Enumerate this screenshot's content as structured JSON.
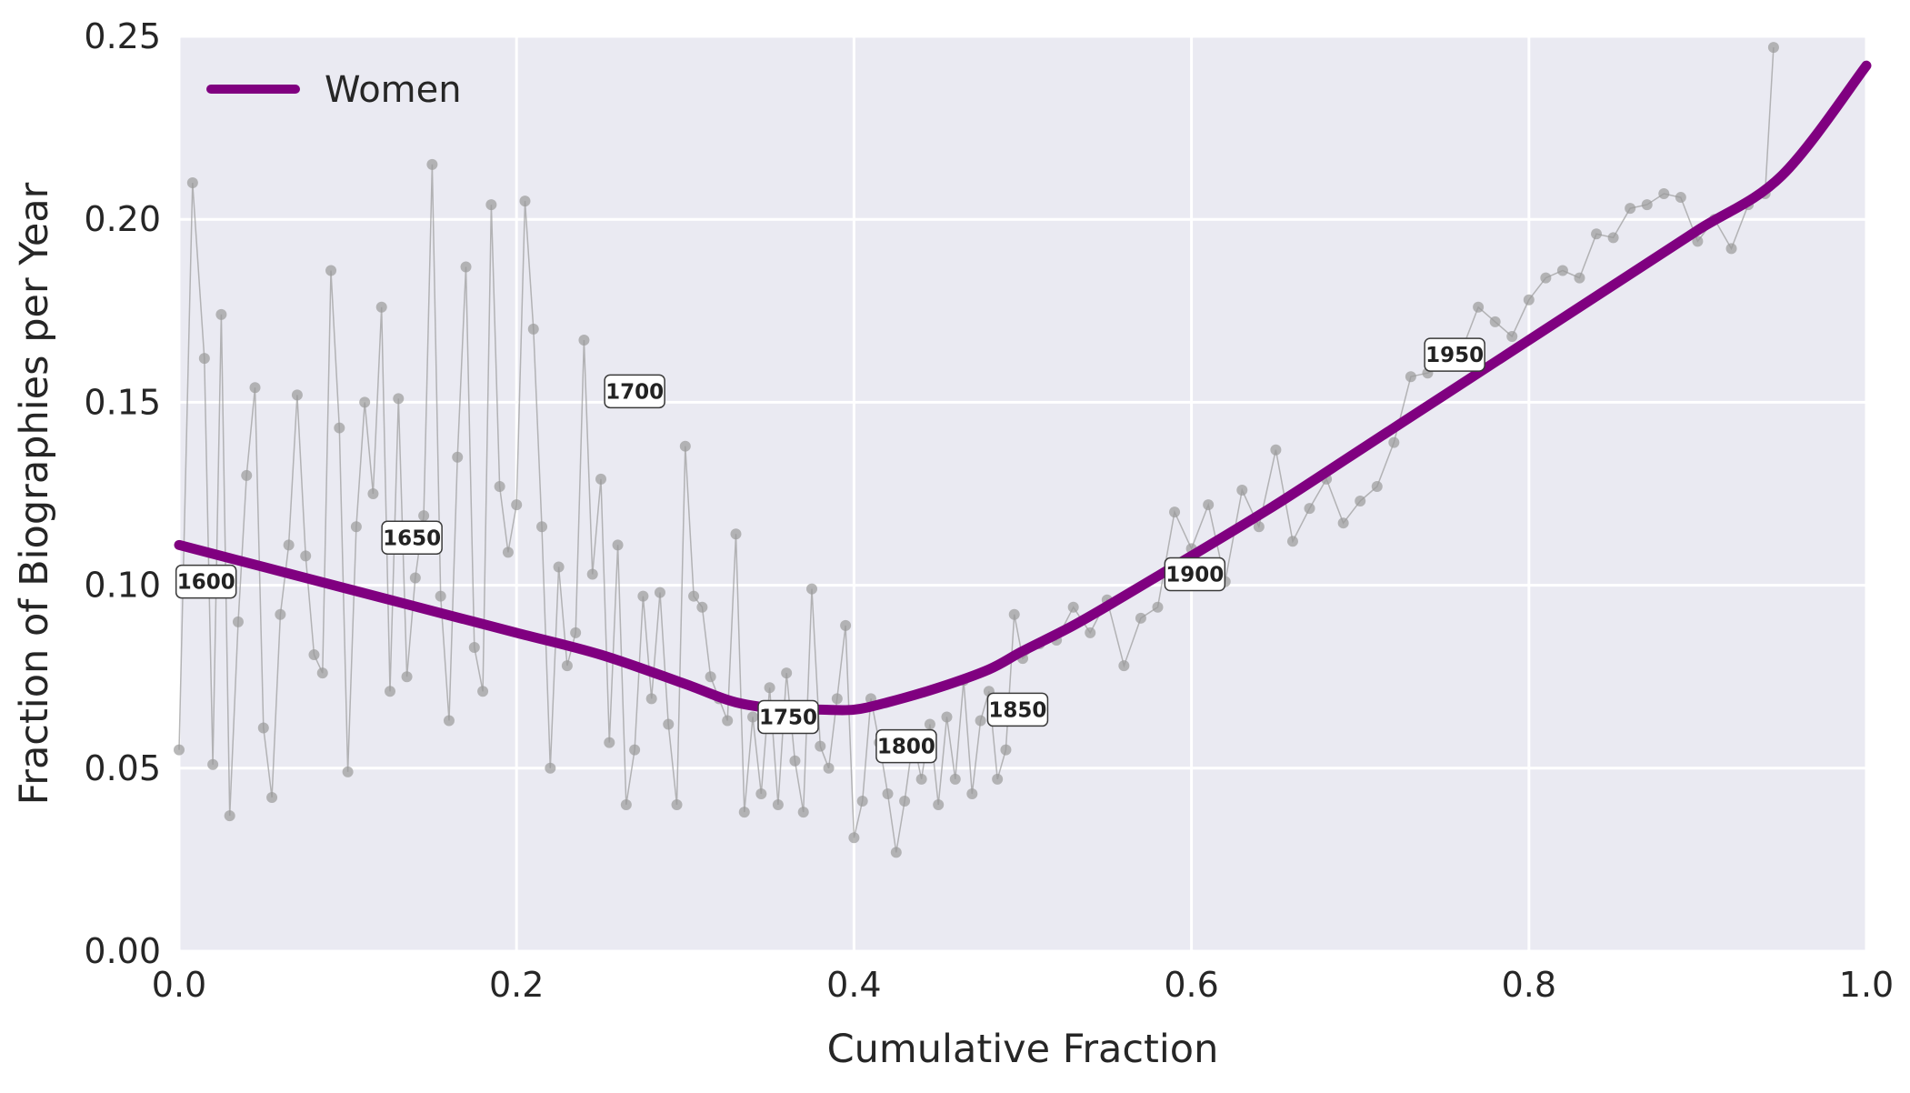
{
  "chart_data": {
    "type": "line",
    "xlabel": "Cumulative Fraction",
    "ylabel": "Fraction of Biographies per Year",
    "xlim": [
      0.0,
      1.0
    ],
    "ylim": [
      0.0,
      0.25
    ],
    "x_ticks": [
      "0.0",
      "0.2",
      "0.4",
      "0.6",
      "0.8",
      "1.0"
    ],
    "y_ticks": [
      "0.00",
      "0.05",
      "0.10",
      "0.15",
      "0.20",
      "0.25"
    ],
    "x_tick_values": [
      0.0,
      0.2,
      0.4,
      0.6,
      0.8,
      1.0
    ],
    "y_tick_values": [
      0.0,
      0.05,
      0.1,
      0.15,
      0.2,
      0.25
    ],
    "grid": true,
    "legend_position": "top-left",
    "colors": {
      "background": "#eaeaf2",
      "grid": "#ffffff",
      "smooth": "#800080",
      "raw": "#9a9a9a"
    },
    "series": [
      {
        "name": "Women",
        "style": "smoothed",
        "x": [
          0.0,
          0.05,
          0.1,
          0.15,
          0.2,
          0.25,
          0.3,
          0.33,
          0.36,
          0.38,
          0.4,
          0.42,
          0.45,
          0.48,
          0.5,
          0.53,
          0.56,
          0.6,
          0.65,
          0.7,
          0.75,
          0.8,
          0.85,
          0.9,
          0.95,
          1.0
        ],
        "y": [
          0.111,
          0.105,
          0.099,
          0.093,
          0.087,
          0.081,
          0.073,
          0.068,
          0.066,
          0.066,
          0.066,
          0.068,
          0.072,
          0.077,
          0.082,
          0.089,
          0.097,
          0.108,
          0.122,
          0.137,
          0.152,
          0.167,
          0.182,
          0.197,
          0.212,
          0.242
        ]
      },
      {
        "style": "raw",
        "x": [
          0.0,
          0.008,
          0.015,
          0.02,
          0.025,
          0.03,
          0.035,
          0.04,
          0.045,
          0.05,
          0.055,
          0.06,
          0.065,
          0.07,
          0.075,
          0.08,
          0.085,
          0.09,
          0.095,
          0.1,
          0.105,
          0.11,
          0.115,
          0.12,
          0.125,
          0.13,
          0.135,
          0.14,
          0.145,
          0.15,
          0.155,
          0.16,
          0.165,
          0.17,
          0.175,
          0.18,
          0.185,
          0.19,
          0.195,
          0.2,
          0.205,
          0.21,
          0.215,
          0.22,
          0.225,
          0.23,
          0.235,
          0.24,
          0.245,
          0.25,
          0.255,
          0.26,
          0.265,
          0.27,
          0.275,
          0.28,
          0.285,
          0.29,
          0.295,
          0.3,
          0.305,
          0.31,
          0.315,
          0.32,
          0.325,
          0.33,
          0.335,
          0.34,
          0.345,
          0.35,
          0.355,
          0.36,
          0.365,
          0.37,
          0.375,
          0.38,
          0.385,
          0.39,
          0.395,
          0.4,
          0.405,
          0.41,
          0.415,
          0.42,
          0.425,
          0.43,
          0.435,
          0.44,
          0.445,
          0.45,
          0.455,
          0.46,
          0.465,
          0.47,
          0.475,
          0.48,
          0.485,
          0.49,
          0.495,
          0.5,
          0.51,
          0.52,
          0.53,
          0.54,
          0.55,
          0.56,
          0.57,
          0.58,
          0.59,
          0.6,
          0.61,
          0.62,
          0.63,
          0.64,
          0.65,
          0.66,
          0.67,
          0.68,
          0.69,
          0.7,
          0.71,
          0.72,
          0.73,
          0.74,
          0.75,
          0.76,
          0.77,
          0.78,
          0.79,
          0.8,
          0.81,
          0.82,
          0.83,
          0.84,
          0.85,
          0.86,
          0.87,
          0.88,
          0.89,
          0.9,
          0.91,
          0.92,
          0.93,
          0.94,
          0.945
        ],
        "y": [
          0.055,
          0.21,
          0.162,
          0.051,
          0.174,
          0.037,
          0.09,
          0.13,
          0.154,
          0.061,
          0.042,
          0.092,
          0.111,
          0.152,
          0.108,
          0.081,
          0.076,
          0.186,
          0.143,
          0.049,
          0.116,
          0.15,
          0.125,
          0.176,
          0.071,
          0.151,
          0.075,
          0.102,
          0.119,
          0.215,
          0.097,
          0.063,
          0.135,
          0.187,
          0.083,
          0.071,
          0.204,
          0.127,
          0.109,
          0.122,
          0.205,
          0.17,
          0.116,
          0.05,
          0.105,
          0.078,
          0.087,
          0.167,
          0.103,
          0.129,
          0.057,
          0.111,
          0.04,
          0.055,
          0.097,
          0.069,
          0.098,
          0.062,
          0.04,
          0.138,
          0.097,
          0.094,
          0.075,
          0.069,
          0.063,
          0.114,
          0.038,
          0.064,
          0.043,
          0.072,
          0.04,
          0.076,
          0.052,
          0.038,
          0.099,
          0.056,
          0.05,
          0.069,
          0.089,
          0.031,
          0.041,
          0.069,
          0.057,
          0.043,
          0.027,
          0.041,
          0.058,
          0.047,
          0.062,
          0.04,
          0.064,
          0.047,
          0.074,
          0.043,
          0.063,
          0.071,
          0.047,
          0.055,
          0.092,
          0.08,
          0.084,
          0.085,
          0.094,
          0.087,
          0.096,
          0.078,
          0.091,
          0.094,
          0.12,
          0.11,
          0.122,
          0.101,
          0.126,
          0.116,
          0.137,
          0.112,
          0.121,
          0.129,
          0.117,
          0.123,
          0.127,
          0.139,
          0.157,
          0.158,
          0.16,
          0.164,
          0.176,
          0.172,
          0.168,
          0.178,
          0.184,
          0.186,
          0.184,
          0.196,
          0.195,
          0.203,
          0.204,
          0.207,
          0.206,
          0.194,
          0.2,
          0.192,
          0.204,
          0.207,
          0.247
        ]
      }
    ],
    "year_labels": [
      {
        "text": "1600",
        "x": 0.016,
        "y": 0.101
      },
      {
        "text": "1650",
        "x": 0.138,
        "y": 0.113
      },
      {
        "text": "1700",
        "x": 0.27,
        "y": 0.153
      },
      {
        "text": "1750",
        "x": 0.361,
        "y": 0.064
      },
      {
        "text": "1800",
        "x": 0.431,
        "y": 0.056
      },
      {
        "text": "1850",
        "x": 0.497,
        "y": 0.066
      },
      {
        "text": "1900",
        "x": 0.602,
        "y": 0.103
      },
      {
        "text": "1950",
        "x": 0.756,
        "y": 0.163
      }
    ]
  }
}
